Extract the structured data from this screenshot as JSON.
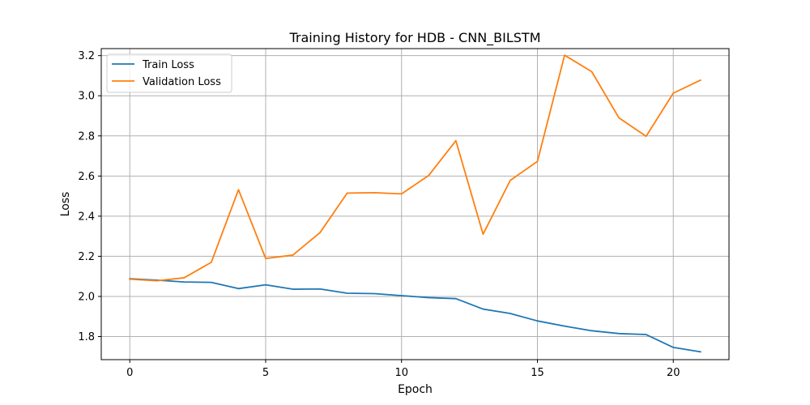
{
  "chart_data": {
    "type": "line",
    "title": "Training History for HDB - CNN_BILSTM",
    "xlabel": "Epoch",
    "ylabel": "Loss",
    "xlim": [
      -1.05,
      22.05
    ],
    "ylim": [
      1.685,
      3.235
    ],
    "xticks": [
      0,
      5,
      10,
      15,
      20
    ],
    "yticks": [
      1.8,
      2.0,
      2.2,
      2.4,
      2.6,
      2.8,
      3.0,
      3.2
    ],
    "ytick_labels": [
      "1.8",
      "2.0",
      "2.2",
      "2.4",
      "2.6",
      "2.8",
      "3.0",
      "3.2"
    ],
    "grid": true,
    "legend_position": "top-left",
    "x": [
      0,
      1,
      2,
      3,
      4,
      5,
      6,
      7,
      8,
      9,
      10,
      11,
      12,
      13,
      14,
      15,
      16,
      17,
      18,
      19,
      20,
      21
    ],
    "series": [
      {
        "name": "Train Loss",
        "color": "#1f77b4",
        "values": [
          2.088,
          2.081,
          2.072,
          2.07,
          2.039,
          2.058,
          2.036,
          2.037,
          2.016,
          2.014,
          2.004,
          1.994,
          1.989,
          1.937,
          1.915,
          1.878,
          1.852,
          1.829,
          1.815,
          1.81,
          1.746,
          1.724
        ]
      },
      {
        "name": "Validation Loss",
        "color": "#ff7f0e",
        "values": [
          2.086,
          2.078,
          2.093,
          2.17,
          2.532,
          2.189,
          2.206,
          2.318,
          2.515,
          2.517,
          2.511,
          2.603,
          2.776,
          2.31,
          2.578,
          2.673,
          3.202,
          3.12,
          2.89,
          2.798,
          3.013,
          3.078
        ]
      }
    ]
  }
}
